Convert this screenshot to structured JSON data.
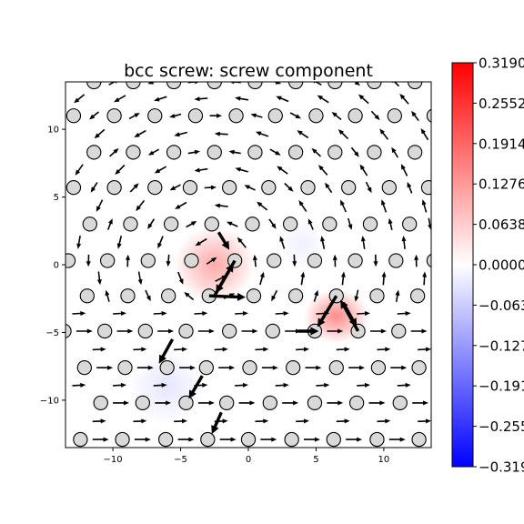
{
  "chart_data": {
    "type": "vector-field-heatmap",
    "title": "bcc screw: screw component",
    "xlim": [
      -13.5,
      13.5
    ],
    "ylim": [
      -13.5,
      13.5
    ],
    "x_ticks": [
      -10,
      -5,
      0,
      5,
      10
    ],
    "y_ticks": [
      -10,
      -5,
      0,
      5,
      10
    ],
    "x_tick_labels": [
      "−10",
      "−5",
      "0",
      "5",
      "10"
    ],
    "y_tick_labels": [
      "−10",
      "−5",
      "0",
      "5",
      "10"
    ],
    "grid": false,
    "colormap": "bwr",
    "colorbar": {
      "location": "right",
      "vmin": -0.319,
      "vmax": 0.319,
      "tick_values": [
        0.319,
        0.2552,
        0.1914,
        0.1276,
        0.0638,
        0.0,
        -0.0638,
        -0.1276,
        -0.1914,
        -0.2552,
        -0.319
      ],
      "tick_labels": [
        "0.3190",
        "0.2552",
        "0.1914",
        "0.1276",
        "0.0638",
        "0.0000",
        "−0.0638",
        "−0.1276",
        "−0.1914",
        "−0.2552",
        "−0.3190"
      ]
    },
    "colors": {
      "atom_fill": "#d9d9d9",
      "atom_edge": "#000000",
      "arrow": "#000000",
      "positive": "#ff0000",
      "negative": "#0000ff",
      "zero": "#ffffff"
    },
    "heat_blobs": [
      {
        "x": -2.5,
        "y": 0.0,
        "value": 0.12,
        "sx": 3.0,
        "sy": 2.8
      },
      {
        "x": 6.5,
        "y": -3.8,
        "value": 0.16,
        "sx": 2.4,
        "sy": 2.0
      },
      {
        "x": -6.0,
        "y": -9.0,
        "value": -0.035,
        "sx": 2.8,
        "sy": 2.8
      },
      {
        "x": 4.0,
        "y": 1.5,
        "value": -0.02,
        "sx": 2.0,
        "sy": 2.0
      }
    ],
    "atom_rows": [
      {
        "y": 13.5,
        "xs": [
          -11.4,
          -8.5,
          -5.5,
          -2.5,
          0.5,
          3.5,
          6.4,
          9.3,
          12.3
        ]
      },
      {
        "y": 11.0,
        "xs": [
          -12.9,
          -9.9,
          -6.9,
          -3.9,
          -0.9,
          2.0,
          5.0,
          7.9,
          10.8,
          13.7
        ]
      },
      {
        "y": 8.3,
        "xs": [
          -11.4,
          -8.5,
          -5.5,
          -2.5,
          0.5,
          3.5,
          6.4,
          9.3,
          12.3
        ]
      },
      {
        "y": 5.7,
        "xs": [
          -12.9,
          -9.9,
          -6.9,
          -4.3,
          -1.4,
          1.5,
          4.4,
          7.4,
          10.4,
          13.3
        ]
      },
      {
        "y": 3.0,
        "xs": [
          -11.7,
          -8.7,
          -5.7,
          -2.7,
          0.3,
          3.1,
          6.0,
          9.0,
          11.9
        ]
      },
      {
        "y": 0.3,
        "xs": [
          -13.3,
          -10.4,
          -7.4,
          -4.2,
          -1.0,
          1.9,
          4.9,
          7.9,
          10.9,
          13.7
        ]
      },
      {
        "y": -2.3,
        "xs": [
          -11.9,
          -8.9,
          -5.9,
          -2.9,
          0.4,
          3.5,
          6.5,
          9.5,
          12.5
        ]
      },
      {
        "y": -4.9,
        "xs": [
          -13.6,
          -10.6,
          -7.6,
          -4.6,
          -1.4,
          1.8,
          4.9,
          8.1,
          11.1
        ]
      },
      {
        "y": -7.6,
        "xs": [
          -12.1,
          -9.1,
          -6.0,
          -3.1,
          0.1,
          3.3,
          6.5,
          9.6,
          12.6
        ]
      },
      {
        "y": -10.2,
        "xs": [
          -10.9,
          -7.8,
          -4.6,
          -1.6,
          1.6,
          4.9,
          8.0,
          11.2
        ]
      },
      {
        "y": -12.9,
        "xs": [
          -12.4,
          -9.3,
          -6.1,
          -3.0,
          0.0,
          3.2,
          6.3,
          9.5,
          12.6
        ]
      }
    ],
    "bold_arrows": [
      {
        "x0": -2.5,
        "y0": -2.3,
        "x1": -1.1,
        "y1": 0.1
      },
      {
        "x0": -1.0,
        "y0": 0.3,
        "x1": -2.4,
        "y1": -2.1
      },
      {
        "x0": -2.9,
        "y0": -2.3,
        "x1": -0.2,
        "y1": -2.4
      },
      {
        "x0": -2.2,
        "y0": 2.4,
        "x1": -1.4,
        "y1": 1.1
      },
      {
        "x0": 6.5,
        "y0": -2.3,
        "x1": 5.1,
        "y1": -4.6
      },
      {
        "x0": 8.1,
        "y0": -4.9,
        "x1": 6.8,
        "y1": -2.6
      },
      {
        "x0": 7.0,
        "y0": -2.8,
        "x1": 8.0,
        "y1": -4.6
      },
      {
        "x0": 3.7,
        "y0": -4.9,
        "x1": 5.2,
        "y1": -4.9
      },
      {
        "x0": -5.6,
        "y0": -5.5,
        "x1": -6.6,
        "y1": -7.3
      },
      {
        "x0": -3.4,
        "y0": -8.2,
        "x1": -4.4,
        "y1": -9.9
      },
      {
        "x0": -2.0,
        "y0": -10.9,
        "x1": -2.7,
        "y1": -12.5
      }
    ]
  }
}
